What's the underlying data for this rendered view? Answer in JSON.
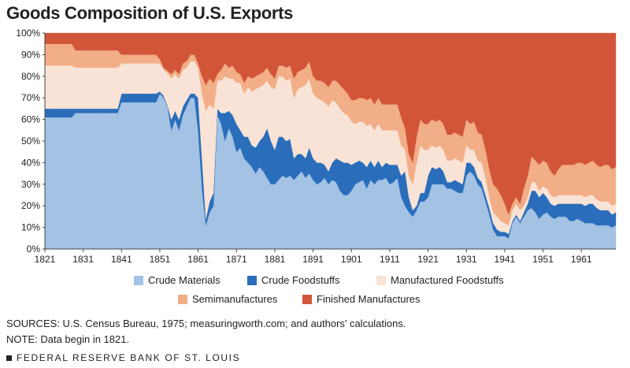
{
  "chart_data": {
    "type": "area",
    "stacked": true,
    "percent": true,
    "title": "Goods Composition of U.S. Exports",
    "xlabel": "",
    "ylabel": "",
    "xlim": [
      1821,
      1970
    ],
    "ylim": [
      0,
      100
    ],
    "yticks": [
      "0%",
      "10%",
      "20%",
      "30%",
      "40%",
      "50%",
      "60%",
      "70%",
      "80%",
      "90%",
      "100%"
    ],
    "xticks": [
      "1821",
      "1831",
      "1841",
      "1851",
      "1861",
      "1871",
      "1881",
      "1891",
      "1901",
      "1911",
      "1921",
      "1931",
      "1941",
      "1951",
      "1961"
    ],
    "x": [
      1821,
      1825,
      1828,
      1829,
      1835,
      1840,
      1841,
      1848,
      1849,
      1850,
      1851,
      1852,
      1853,
      1854,
      1855,
      1856,
      1857,
      1858,
      1859,
      1860,
      1861,
      1862,
      1863,
      1864,
      1865,
      1866,
      1867,
      1868,
      1869,
      1870,
      1871,
      1872,
      1873,
      1874,
      1875,
      1876,
      1877,
      1878,
      1879,
      1880,
      1881,
      1882,
      1883,
      1884,
      1885,
      1886,
      1887,
      1888,
      1889,
      1890,
      1891,
      1892,
      1893,
      1894,
      1895,
      1896,
      1897,
      1898,
      1899,
      1900,
      1901,
      1902,
      1903,
      1904,
      1905,
      1906,
      1907,
      1908,
      1909,
      1910,
      1911,
      1912,
      1913,
      1914,
      1915,
      1916,
      1917,
      1918,
      1919,
      1920,
      1921,
      1922,
      1923,
      1924,
      1925,
      1926,
      1927,
      1928,
      1929,
      1930,
      1931,
      1932,
      1933,
      1934,
      1935,
      1936,
      1937,
      1938,
      1939,
      1940,
      1941,
      1942,
      1943,
      1944,
      1945,
      1946,
      1947,
      1948,
      1949,
      1950,
      1951,
      1952,
      1953,
      1954,
      1955,
      1956,
      1957,
      1958,
      1959,
      1960,
      1961,
      1962,
      1963,
      1964,
      1965,
      1966,
      1967,
      1968,
      1969,
      1970
    ],
    "series": [
      {
        "name": "Crude Materials",
        "color": "#a3c2e4",
        "values": [
          61,
          61,
          61,
          63,
          63,
          63,
          68,
          68,
          68,
          68,
          72,
          70,
          66,
          55,
          60,
          55,
          62,
          66,
          70,
          70,
          55,
          28,
          11,
          17,
          20,
          62,
          58,
          50,
          56,
          52,
          45,
          47,
          42,
          40,
          38,
          35,
          38,
          36,
          33,
          30,
          30,
          32,
          34,
          33,
          34,
          32,
          34,
          36,
          33,
          35,
          32,
          30,
          31,
          33,
          30,
          32,
          31,
          27,
          25,
          25,
          27,
          30,
          31,
          32,
          28,
          32,
          30,
          32,
          32,
          33,
          30,
          31,
          33,
          24,
          20,
          17,
          15,
          18,
          22,
          22,
          24,
          30,
          30,
          30,
          30,
          28,
          28,
          27,
          26,
          26,
          34,
          36,
          34,
          30,
          28,
          22,
          16,
          9,
          6,
          6,
          6,
          5,
          12,
          15,
          12,
          15,
          18,
          19,
          17,
          14,
          16,
          17,
          15,
          14,
          15,
          15,
          15,
          13,
          13,
          14,
          13,
          12,
          12,
          12,
          11,
          11,
          11,
          11,
          10,
          11
        ]
      },
      {
        "name": "Crude Foodstuffs",
        "color": "#2a6ebb",
        "values": [
          4,
          4,
          4,
          2,
          2,
          2,
          4,
          4,
          4,
          4,
          1,
          1,
          0.5,
          5,
          4,
          5,
          4,
          3,
          2,
          2,
          15,
          14,
          3,
          5,
          6,
          3,
          5,
          13,
          8,
          10,
          13,
          8,
          10,
          12,
          10,
          12,
          12,
          16,
          23,
          20,
          16,
          20,
          18,
          17,
          17,
          10,
          10,
          8,
          9,
          12,
          10,
          10,
          9,
          6,
          6,
          8,
          11,
          14,
          15,
          15,
          12,
          10,
          10,
          8,
          10,
          9,
          8,
          9,
          6,
          7,
          9,
          8,
          6,
          10,
          16,
          7,
          3,
          2,
          4,
          4,
          10,
          8,
          7,
          8,
          6,
          3,
          3,
          5,
          5,
          4,
          6,
          4,
          4,
          3,
          3,
          3,
          3,
          3,
          3,
          2,
          2,
          2,
          1,
          1,
          1,
          2,
          3,
          8,
          10,
          10,
          10,
          7,
          6,
          6,
          6,
          6,
          6,
          8,
          8,
          7,
          8,
          8,
          9,
          9,
          8,
          7,
          7,
          7,
          6,
          6
        ]
      },
      {
        "name": "Manufactured Foodstuffs",
        "color": "#f8e3d6",
        "values": [
          20,
          20,
          20,
          19,
          19,
          19,
          14,
          14,
          14,
          14,
          13,
          12,
          15,
          19,
          17,
          19,
          17,
          15,
          15,
          15,
          14,
          30,
          50,
          45,
          39,
          13,
          15,
          17,
          15,
          17,
          19,
          22,
          20,
          23,
          25,
          27,
          25,
          24,
          22,
          25,
          28,
          28,
          28,
          28,
          28,
          28,
          30,
          31,
          34,
          32,
          30,
          30,
          29,
          29,
          30,
          29,
          26,
          24,
          23,
          22,
          20,
          18,
          18,
          19,
          19,
          17,
          17,
          17,
          17,
          15,
          16,
          16,
          16,
          14,
          10,
          10,
          12,
          20,
          22,
          20,
          12,
          10,
          10,
          10,
          10,
          10,
          10,
          10,
          10,
          10,
          8,
          6,
          8,
          8,
          9,
          8,
          5,
          5,
          6,
          5,
          4,
          4,
          5,
          5,
          5,
          3,
          3,
          4,
          4,
          3,
          3,
          4,
          4,
          4,
          4,
          4,
          4,
          4,
          4,
          4,
          4,
          4,
          4,
          4,
          4,
          4,
          4,
          4,
          4,
          4
        ]
      },
      {
        "name": "Semimanufactures",
        "color": "#f2ae86",
        "values": [
          10,
          10,
          10,
          8,
          8,
          8,
          4,
          4,
          4,
          4,
          2,
          1,
          1,
          2,
          2,
          2,
          3,
          3,
          3,
          3,
          2,
          8,
          12,
          12,
          12,
          3,
          5,
          6,
          5,
          6,
          5,
          4,
          5,
          5,
          6,
          6,
          6,
          6,
          6,
          6,
          5,
          5,
          5,
          6,
          6,
          9,
          8,
          8,
          8,
          8,
          8,
          8,
          9,
          9,
          9,
          9,
          10,
          11,
          11,
          10,
          10,
          11,
          11,
          11,
          12,
          12,
          12,
          12,
          12,
          12,
          12,
          12,
          12,
          13,
          10,
          10,
          10,
          12,
          12,
          12,
          12,
          12,
          12,
          12,
          12,
          12,
          12,
          12,
          12,
          12,
          12,
          12,
          13,
          13,
          13,
          13,
          13,
          13,
          13,
          12,
          9,
          5,
          3,
          3,
          3,
          8,
          10,
          12,
          10,
          12,
          12,
          12,
          11,
          10,
          12,
          14,
          14,
          14,
          14,
          15,
          15,
          15,
          15,
          16,
          16,
          16,
          17,
          17,
          17,
          17
        ]
      },
      {
        "name": "Finished Manufactures",
        "color": "#d2553a",
        "values": [
          5,
          5,
          5,
          8,
          8,
          8,
          10,
          10,
          10,
          10,
          12,
          16,
          17.5,
          19,
          17,
          19,
          14,
          13,
          10,
          10,
          14,
          20,
          24,
          21,
          23,
          19,
          17,
          14,
          16,
          15,
          18,
          19,
          23,
          20,
          21,
          20,
          19,
          18,
          16,
          19,
          21,
          15,
          15,
          16,
          15,
          21,
          18,
          17,
          16,
          13,
          20,
          22,
          22,
          23,
          25,
          22,
          22,
          24,
          26,
          28,
          31,
          31,
          30,
          30,
          31,
          30,
          33,
          30,
          33,
          33,
          33,
          33,
          33,
          39,
          44,
          56,
          60,
          48,
          40,
          42,
          42,
          40,
          41,
          40,
          42,
          47,
          47,
          46,
          47,
          48,
          40,
          42,
          41,
          46,
          47,
          54,
          63,
          70,
          72,
          75,
          79,
          84,
          79,
          76,
          79,
          72,
          66,
          57,
          59,
          61,
          59,
          60,
          64,
          66,
          63,
          61,
          61,
          61,
          61,
          60,
          60,
          61,
          60,
          59,
          61,
          62,
          61,
          61,
          63,
          62
        ]
      }
    ]
  },
  "footer": {
    "sources": "SOURCES: U.S. Census Bureau, 1975; measuringworth.com; and authors’ calculations.",
    "note": "NOTE: Data begin in 1821.",
    "brand": "FEDERAL RESERVE BANK OF ST. LOUIS"
  }
}
